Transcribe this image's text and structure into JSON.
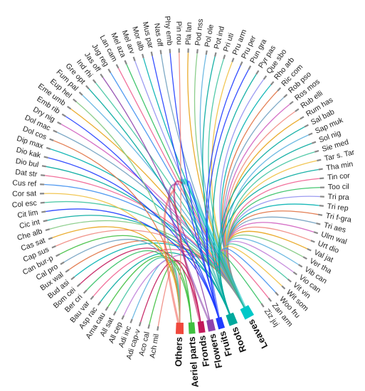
{
  "chart_data": {
    "type": "chord",
    "plant_parts": [
      {
        "name": "Others",
        "color": "#f0483c"
      },
      {
        "name": "Aeriel parts",
        "color": "#3fbf3f"
      },
      {
        "name": "Fronds",
        "color": "#c2185b"
      },
      {
        "name": "Flowers",
        "color": "#8e44ad"
      },
      {
        "name": "Fruits",
        "color": "#1f3cff"
      },
      {
        "name": "Roots",
        "color": "#00a99d"
      },
      {
        "name": "Leaves",
        "color": "#00c8c8"
      }
    ],
    "species": [
      "Ach mil",
      "Aco cal",
      "Adi cap-v",
      "Adi inc",
      "All cep",
      "All sat",
      "Ama cau",
      "Asp rac",
      "Bau var",
      "Ber cri",
      "Bom cei",
      "Bud asi",
      "Bux wal",
      "Cal pro",
      "Can bur-p",
      "Cap sus",
      "Cas sat",
      "Che alb",
      "Cic int",
      "Cit lim",
      "Col esc",
      "Cor sat",
      "Cus ref",
      "Dat str",
      "Dio bul",
      "Dio kak",
      "Dip max",
      "Dol cos",
      "Dol mac",
      "Dry nig",
      "Emb rib",
      "Eme umb",
      "Eup hel",
      "Fum pal",
      "Gre opt",
      "Ind rhi",
      "Jas off",
      "Jug reg",
      "Lan cam",
      "Mel aza",
      "Mel arv",
      "Mor alb",
      "Mus par",
      "Nas off",
      "Phy emb",
      "Pin rou",
      "Pla lan",
      "Pod nss",
      "Pol ole",
      "Pot ind",
      "Pri uti",
      "Pru arm",
      "Pru per",
      "Pun gra",
      "Pyr pas",
      "Que sbo",
      "Rho arb",
      "Ric com",
      "Rob pso",
      "Ros mos",
      "Rub elli",
      "Rum has",
      "Sal bab",
      "Sap muk",
      "Sol nig",
      "Sie med",
      "Tar s. Tar",
      "Tha min",
      "Tin cor",
      "Too cil",
      "Tri pra",
      "Tri rep",
      "Tri f-gra",
      "Tri aes",
      "Ulm wal",
      "Urt dio",
      "Val jat",
      "Ver tha",
      "Vib can",
      "Vio can",
      "Vit vin",
      "Wit som",
      "Woo fru",
      "Zan arm",
      "Ziz juj"
    ],
    "links": [
      [
        0,
        0
      ],
      [
        1,
        1
      ],
      [
        2,
        2
      ],
      [
        3,
        0
      ],
      [
        4,
        6
      ],
      [
        5,
        0
      ],
      [
        6,
        1
      ],
      [
        7,
        5
      ],
      [
        8,
        6
      ],
      [
        9,
        0
      ],
      [
        10,
        2
      ],
      [
        11,
        6
      ],
      [
        12,
        6
      ],
      [
        13,
        0
      ],
      [
        14,
        1
      ],
      [
        15,
        6
      ],
      [
        16,
        0
      ],
      [
        17,
        6
      ],
      [
        18,
        5
      ],
      [
        19,
        4
      ],
      [
        20,
        6
      ],
      [
        21,
        0
      ],
      [
        22,
        6
      ],
      [
        23,
        6
      ],
      [
        24,
        5
      ],
      [
        25,
        4
      ],
      [
        26,
        6
      ],
      [
        27,
        0
      ],
      [
        28,
        6
      ],
      [
        29,
        6
      ],
      [
        30,
        4
      ],
      [
        31,
        6
      ],
      [
        32,
        0
      ],
      [
        33,
        6
      ],
      [
        34,
        5
      ],
      [
        35,
        6
      ],
      [
        36,
        3
      ],
      [
        37,
        6
      ],
      [
        38,
        6
      ],
      [
        39,
        6
      ],
      [
        40,
        6
      ],
      [
        41,
        6
      ],
      [
        42,
        4
      ],
      [
        43,
        6
      ],
      [
        44,
        4
      ],
      [
        45,
        0
      ],
      [
        46,
        6
      ],
      [
        47,
        6
      ],
      [
        48,
        6
      ],
      [
        49,
        5
      ],
      [
        50,
        6
      ],
      [
        51,
        6
      ],
      [
        52,
        4
      ],
      [
        53,
        4
      ],
      [
        54,
        5
      ],
      [
        55,
        6
      ],
      [
        56,
        6
      ],
      [
        57,
        6
      ],
      [
        58,
        6
      ],
      [
        59,
        6
      ],
      [
        60,
        6
      ],
      [
        61,
        6
      ],
      [
        62,
        5
      ],
      [
        63,
        6
      ],
      [
        64,
        5
      ],
      [
        65,
        6
      ],
      [
        66,
        6
      ],
      [
        67,
        5
      ],
      [
        68,
        6
      ],
      [
        69,
        6
      ],
      [
        70,
        6
      ],
      [
        71,
        6
      ],
      [
        72,
        6
      ],
      [
        73,
        6
      ],
      [
        74,
        6
      ],
      [
        75,
        6
      ],
      [
        76,
        6
      ],
      [
        77,
        6
      ],
      [
        78,
        6
      ],
      [
        79,
        6
      ],
      [
        80,
        6
      ],
      [
        81,
        6
      ],
      [
        82,
        6
      ],
      [
        83,
        6
      ],
      [
        84,
        6
      ]
    ],
    "link_colors": [
      "#f08a80",
      "#e8a317",
      "#7fc97f",
      "#5fb3e0",
      "#c07fd8",
      "#40c4a0",
      "#f0c040",
      "#4090f0",
      "#f06090",
      "#30c060",
      "#9090f0",
      "#00b0b0",
      "#e07040",
      "#70a0c0",
      "#d060c0"
    ]
  }
}
